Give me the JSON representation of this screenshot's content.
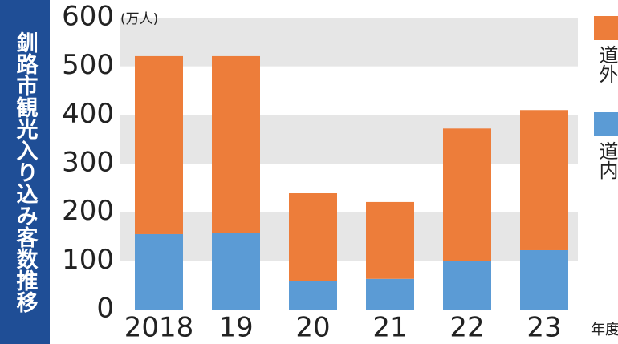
{
  "chart_data": {
    "type": "stacked_bar",
    "title": "釧路市観光入り込み客数推移",
    "y_unit": "(万人)",
    "x_suffix": "年度",
    "categories": [
      "2018",
      "19",
      "20",
      "21",
      "22",
      "23"
    ],
    "series": [
      {
        "name": "道内",
        "color": "#5b9bd5",
        "values": [
          155,
          158,
          58,
          63,
          100,
          122
        ]
      },
      {
        "name": "道外",
        "color": "#ed7d3a",
        "values": [
          366,
          363,
          181,
          158,
          272,
          288
        ]
      }
    ],
    "ylim": [
      0,
      600
    ],
    "yticks": [
      0,
      100,
      200,
      300,
      400,
      500,
      600
    ],
    "grid": "bands"
  }
}
